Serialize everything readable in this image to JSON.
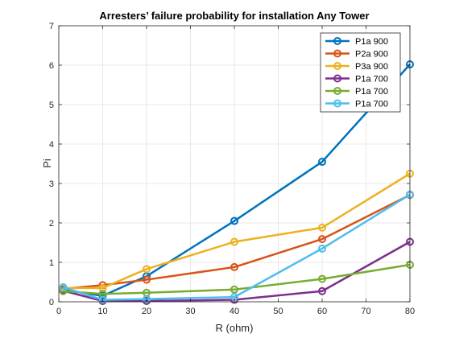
{
  "chart_data": {
    "type": "line",
    "title": "Arresters’ failure probability  for installation Any Tower",
    "xlabel": "R (ohm)",
    "ylabel": "Pi",
    "xlim": [
      0,
      80
    ],
    "ylim": [
      0,
      7
    ],
    "xticks": [
      0,
      10,
      20,
      30,
      40,
      50,
      60,
      70,
      80
    ],
    "yticks": [
      0,
      1,
      2,
      3,
      4,
      5,
      6,
      7
    ],
    "grid": true,
    "legend_position": "top-right",
    "series": [
      {
        "name": "P1a 900",
        "color": "#0072BD",
        "x": [
          1,
          10,
          20,
          40,
          60,
          80
        ],
        "y": [
          0.3,
          0.15,
          0.65,
          2.05,
          3.55,
          6.02
        ]
      },
      {
        "name": "P2a 900",
        "color": "#D95319",
        "x": [
          1,
          10,
          20,
          40,
          60,
          80
        ],
        "y": [
          0.33,
          0.42,
          0.56,
          0.88,
          1.59,
          2.71
        ]
      },
      {
        "name": "P3a 900",
        "color": "#EDB120",
        "x": [
          1,
          10,
          20,
          40,
          60,
          80
        ],
        "y": [
          0.35,
          0.35,
          0.83,
          1.52,
          1.88,
          3.25
        ]
      },
      {
        "name": "P1a 700",
        "color": "#7E2F8E",
        "x": [
          1,
          10,
          20,
          40,
          60,
          80
        ],
        "y": [
          0.28,
          0.02,
          0.02,
          0.05,
          0.27,
          1.52
        ]
      },
      {
        "name": "P1a 700",
        "color": "#77AC30",
        "x": [
          1,
          10,
          20,
          40,
          60,
          80
        ],
        "y": [
          0.27,
          0.2,
          0.23,
          0.31,
          0.58,
          0.94
        ]
      },
      {
        "name": "P1a 700",
        "color": "#4DBEEE",
        "x": [
          1,
          10,
          20,
          40,
          60,
          80
        ],
        "y": [
          0.37,
          0.05,
          0.07,
          0.12,
          1.35,
          2.72
        ]
      }
    ]
  }
}
